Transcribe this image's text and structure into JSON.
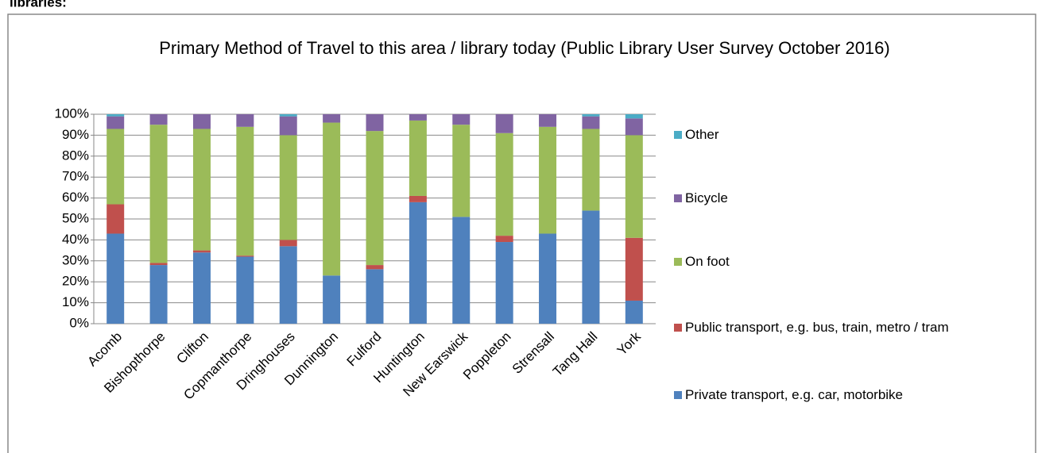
{
  "heading": "libraries:",
  "chart_data": {
    "type": "stacked_bar",
    "title": "Primary Method of Travel to this area / library today (Public Library User Survey October 2016)",
    "categories": [
      "Acomb",
      "Bishopthorpe",
      "Clifton",
      "Copmanthorpe",
      "Dringhouses",
      "Dunnington",
      "Fulford",
      "Huntington",
      "New Earswick",
      "Poppleton",
      "Strensall",
      "Tang Hall",
      "York"
    ],
    "series": [
      {
        "name": "Private transport, e.g. car, motorbike",
        "color": "#4f81bd",
        "values": [
          43,
          28,
          34,
          32,
          37,
          23,
          26,
          58,
          51,
          39,
          43,
          54,
          11
        ]
      },
      {
        "name": "Public transport, e.g. bus, train, metro / tram",
        "color": "#c0504d",
        "values": [
          14,
          1,
          1,
          0.5,
          3,
          0,
          2,
          3,
          0,
          3,
          0,
          0,
          30
        ]
      },
      {
        "name": "On foot",
        "color": "#9bbb59",
        "values": [
          36,
          66,
          58,
          61.5,
          50,
          73,
          64,
          36,
          44,
          49,
          51,
          39,
          49
        ]
      },
      {
        "name": "Bicycle",
        "color": "#8064a2",
        "values": [
          6,
          5,
          7,
          6,
          9,
          4,
          8,
          3,
          5,
          9,
          6,
          6,
          8
        ]
      },
      {
        "name": "Other",
        "color": "#4bacc6",
        "values": [
          1,
          0,
          0,
          0,
          1,
          0,
          0,
          0,
          0,
          0,
          0,
          1,
          2
        ]
      }
    ],
    "ylim": [
      0,
      100
    ],
    "yticks": [
      {
        "value": 0,
        "label": "0%"
      },
      {
        "value": 10,
        "label": "10%"
      },
      {
        "value": 20,
        "label": "20%"
      },
      {
        "value": 30,
        "label": "30%"
      },
      {
        "value": 40,
        "label": "40%"
      },
      {
        "value": 50,
        "label": "50%"
      },
      {
        "value": 60,
        "label": "60%"
      },
      {
        "value": 70,
        "label": "70%"
      },
      {
        "value": 80,
        "label": "80%"
      },
      {
        "value": 90,
        "label": "90%"
      },
      {
        "value": 100,
        "label": "100%"
      }
    ],
    "grid": true
  }
}
